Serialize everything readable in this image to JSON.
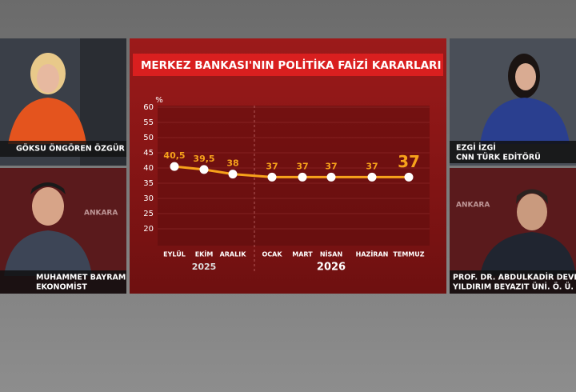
{
  "chart_data": {
    "type": "line",
    "title": "MERKEZ BANKASI'NIN POLİTİKA FAİZİ KARARLARI",
    "y_label": "%",
    "categories": [
      "EYLÜL",
      "EKİM",
      "ARALIK",
      "OCAK",
      "MART",
      "NİSAN",
      "HAZİRAN",
      "TEMMUZ"
    ],
    "values": [
      40.5,
      39.5,
      38,
      37,
      37,
      37,
      37,
      37
    ],
    "value_labels": [
      "40,5",
      "39,5",
      "38",
      "37",
      "37",
      "37",
      "37",
      "37"
    ],
    "year_labels": [
      "2025",
      "2026"
    ],
    "color": "#f7a21b",
    "ylim": [
      15,
      60
    ],
    "yticks": [
      20,
      25,
      30,
      35,
      40,
      45,
      50,
      55,
      60
    ],
    "grid": true
  },
  "panels": [
    {
      "name": "GÖKSU ÖNGÖREN ÖZGÜR"
    },
    {
      "name": "MUHAMMET BAYRAM",
      "role": "EKONOMİST",
      "tag": "ANKARA"
    },
    {
      "name": "EZGİ İZGİ",
      "role": "CNN TÜRK EDİTÖRÜ"
    },
    {
      "name": "PROF. DR. ABDULKADİR DEVEL",
      "role": "YILDIRIM BEYAZIT ÜNİ. Ö. Ü.",
      "tag": "ANKARA"
    }
  ]
}
